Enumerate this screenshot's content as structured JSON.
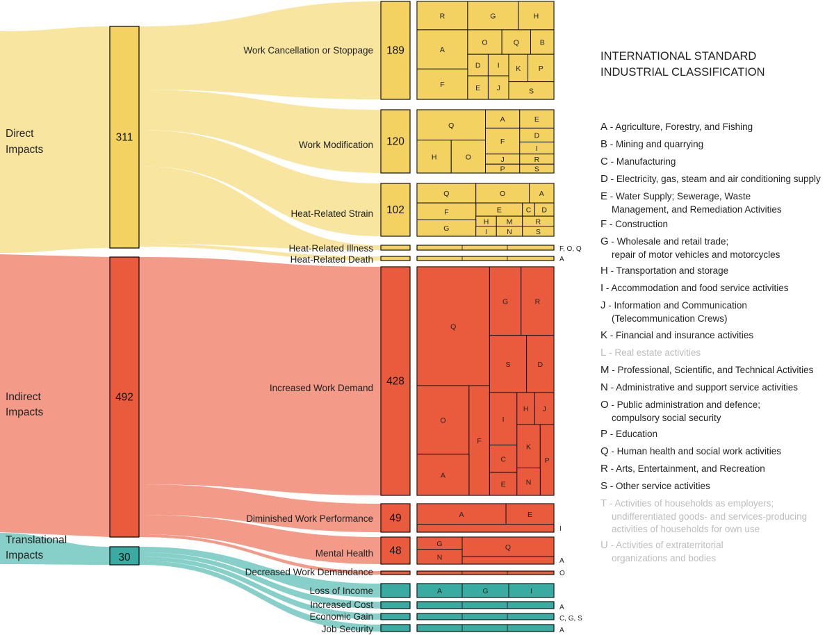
{
  "colors": {
    "direct": "#f3d261",
    "direct_flow": "#f8e6a0",
    "indirect": "#ea5a3d",
    "indirect_flow": "#f39a88",
    "translational": "#3aaba0",
    "translational_flow": "#86d0c9"
  },
  "chart_data": {
    "type": "sankey",
    "groups": [
      {
        "key": "direct",
        "label_lines": [
          "Direct",
          "Impacts"
        ],
        "value": 311
      },
      {
        "key": "indirect",
        "label_lines": [
          "Indirect",
          "Impacts"
        ],
        "value": 492
      },
      {
        "key": "translational",
        "label_lines": [
          "Translational",
          "Impacts"
        ],
        "value": 30
      }
    ],
    "categories": [
      {
        "label": "Work Cancellation or Stoppage",
        "value": 189,
        "group": "direct",
        "cells": [
          "R",
          "G",
          "H",
          "A",
          "O",
          "Q",
          "B",
          "D",
          "I",
          "K",
          "P",
          "F",
          "E",
          "J",
          "S"
        ]
      },
      {
        "label": "Work Modification",
        "value": 120,
        "group": "direct",
        "cells": [
          "Q",
          "A",
          "E",
          "F",
          "D",
          "I",
          "H",
          "O",
          "J",
          "R",
          "P",
          "S"
        ]
      },
      {
        "label": "Heat-Related Strain",
        "value": 102,
        "group": "direct",
        "cells": [
          "Q",
          "O",
          "A",
          "E",
          "C",
          "D",
          "F",
          "H",
          "M",
          "R",
          "G",
          "I",
          "N",
          "S"
        ]
      },
      {
        "label": "Heat-Related Illness",
        "group": "direct",
        "codes": "F, O, Q"
      },
      {
        "label": "Heat-Related Death",
        "group": "direct",
        "codes": "A"
      },
      {
        "label": "Increased Work Demand",
        "value": 428,
        "group": "indirect",
        "cells": [
          "Q",
          "G",
          "R",
          "S",
          "D",
          "O",
          "F",
          "I",
          "H",
          "J",
          "C",
          "K",
          "P",
          "A",
          "E",
          "N"
        ]
      },
      {
        "label": "Diminished Work Performance",
        "value": 49,
        "group": "indirect",
        "cells": [
          "A",
          "E"
        ],
        "codes": "I"
      },
      {
        "label": "Mental Health",
        "value": 48,
        "group": "indirect",
        "cells": [
          "G",
          "Q",
          "N"
        ],
        "codes": "A"
      },
      {
        "label": "Decreased Work Demandance",
        "group": "indirect",
        "codes": "O"
      },
      {
        "label": "Loss of Income",
        "group": "translational",
        "cells": [
          "A",
          "G",
          "I"
        ]
      },
      {
        "label": "Increased Cost",
        "group": "translational",
        "codes": "A"
      },
      {
        "label": "Economic Gain",
        "group": "translational",
        "codes": "C, G, S"
      },
      {
        "label": "Job Security",
        "group": "translational",
        "codes": "A"
      }
    ]
  },
  "legend": {
    "title_lines": [
      "INTERNATIONAL STANDARD",
      "INDUSTRIAL CLASSIFICATION"
    ],
    "items": [
      {
        "code": "A",
        "lines": [
          "Agriculture, Forestry, and Fishing"
        ]
      },
      {
        "code": "B",
        "lines": [
          "Mining and quarrying"
        ]
      },
      {
        "code": "C",
        "lines": [
          "Manufacturing"
        ]
      },
      {
        "code": "D",
        "lines": [
          "Electricity, gas, steam and air conditioning supply"
        ]
      },
      {
        "code": "E",
        "lines": [
          "Water Supply; Sewerage, Waste",
          "Management, and Remediation Activities"
        ]
      },
      {
        "code": "F",
        "lines": [
          "Construction"
        ]
      },
      {
        "code": "G",
        "lines": [
          "Wholesale and retail trade;",
          "repair of motor vehicles and motorcycles"
        ]
      },
      {
        "code": "H",
        "lines": [
          "Transportation and storage"
        ]
      },
      {
        "code": "I",
        "lines": [
          "Accommodation and food service activities"
        ]
      },
      {
        "code": "J",
        "lines": [
          "Information and Communication",
          "(Telecommunication Crews)"
        ]
      },
      {
        "code": "K",
        "lines": [
          "Financial and insurance activities"
        ]
      },
      {
        "code": "L",
        "lines": [
          "Real estate activities"
        ],
        "dim": true
      },
      {
        "code": "M",
        "lines": [
          "Professional, Scientific, and Technical Activities"
        ]
      },
      {
        "code": "N",
        "lines": [
          "Administrative and support service activities"
        ]
      },
      {
        "code": "O",
        "lines": [
          "Public administration and defence;",
          "compulsory social security"
        ]
      },
      {
        "code": "P",
        "lines": [
          "Education"
        ]
      },
      {
        "code": "Q",
        "lines": [
          "Human health and social work activities"
        ]
      },
      {
        "code": "R",
        "lines": [
          "Arts, Entertainment, and Recreation"
        ]
      },
      {
        "code": "S",
        "lines": [
          "Other service activities"
        ]
      },
      {
        "code": "T",
        "lines": [
          "Activities of households as employers;",
          "undifferentiated goods- and services-producing",
          "activities of households for own use"
        ],
        "dim": true
      },
      {
        "code": "U",
        "lines": [
          "Activities of extraterritorial",
          "organizations and bodies"
        ],
        "dim": true
      }
    ]
  }
}
